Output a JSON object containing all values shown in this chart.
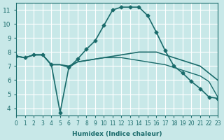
{
  "background_color": "#c8e8e8",
  "grid_color": "#ffffff",
  "line_color": "#1a6b6b",
  "xlabel": "Humidex (Indice chaleur)",
  "xlim": [
    0,
    23
  ],
  "ylim": [
    3.5,
    11.5
  ],
  "xticks": [
    0,
    1,
    2,
    3,
    4,
    5,
    6,
    7,
    8,
    9,
    10,
    11,
    12,
    13,
    14,
    15,
    16,
    17,
    18,
    19,
    20,
    21,
    22,
    23
  ],
  "yticks": [
    4,
    5,
    6,
    7,
    8,
    9,
    10,
    11
  ],
  "lines": [
    {
      "x": [
        0,
        1,
        2,
        3,
        4,
        5,
        6,
        7,
        8,
        9,
        10,
        11,
        12,
        13,
        14,
        15,
        16,
        17,
        18,
        19,
        20,
        21,
        22,
        23
      ],
      "y": [
        7.7,
        7.6,
        7.8,
        7.8,
        7.1,
        3.7,
        6.9,
        7.5,
        8.2,
        8.8,
        9.9,
        11.0,
        11.2,
        11.2,
        11.2,
        10.6,
        9.4,
        8.1,
        7.0,
        6.5,
        5.9,
        5.4,
        4.8,
        4.7
      ],
      "marker": "D",
      "markersize": 2.5,
      "linewidth": 1.2,
      "linestyle": "-"
    },
    {
      "x": [
        0,
        1,
        2,
        3,
        4,
        5,
        6,
        7,
        14,
        15,
        16,
        17,
        18,
        19,
        20,
        21,
        22,
        23
      ],
      "y": [
        7.7,
        7.6,
        7.8,
        7.8,
        7.1,
        7.1,
        7.0,
        7.3,
        8.0,
        8.0,
        8.0,
        7.8,
        7.6,
        7.4,
        7.2,
        7.0,
        6.5,
        6.0
      ],
      "marker": "",
      "markersize": 0,
      "linewidth": 1.2,
      "linestyle": "-"
    },
    {
      "x": [
        0,
        1,
        2,
        3,
        4,
        5,
        6,
        7,
        8,
        9,
        10,
        11,
        12,
        13,
        14,
        15,
        16,
        17,
        18,
        19,
        20,
        21,
        22,
        23
      ],
      "y": [
        7.7,
        7.6,
        7.8,
        7.8,
        7.1,
        7.1,
        6.9,
        7.3,
        7.4,
        7.5,
        7.6,
        7.6,
        7.6,
        7.5,
        7.4,
        7.3,
        7.2,
        7.1,
        6.9,
        6.7,
        6.5,
        6.3,
        5.9,
        4.8
      ],
      "marker": "",
      "markersize": 0,
      "linewidth": 1.0,
      "linestyle": "-"
    }
  ]
}
